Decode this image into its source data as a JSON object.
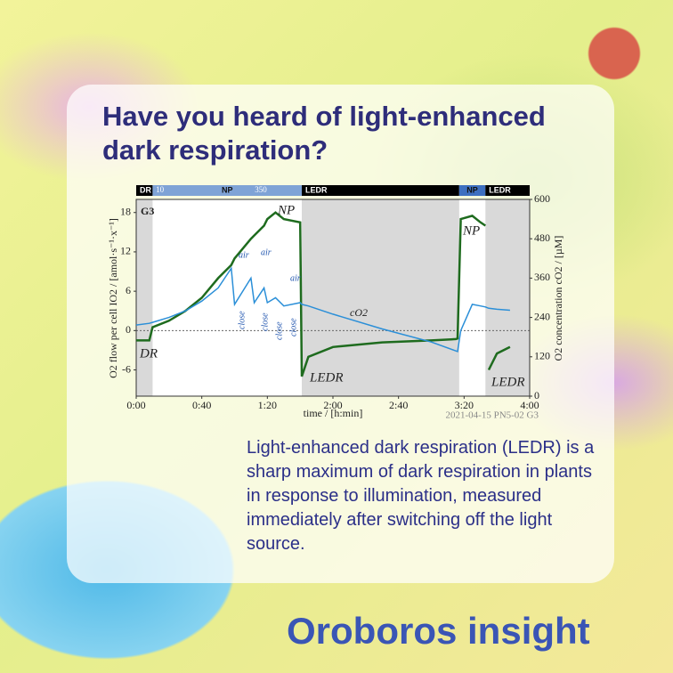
{
  "title": "Have you heard of light-enhanced dark respiration?",
  "body": "Light-enhanced dark respiration (LEDR) is a sharp maximum of dark respiration in plants in response to illumination, measured immediately after switching off the light source.",
  "brand": "Oroboros insight",
  "chart_data": {
    "type": "line",
    "panel_label": "G3",
    "footnote": "2021-04-15 PN5-02 G3",
    "x_label": "time / [h:min]",
    "y_label": "O2 flow per cell IO2 / [amol·s⁻¹·x⁻¹]",
    "y2_label": "O2 concentration cO2 / [µM]",
    "phases": [
      {
        "label": "DR",
        "start": 0,
        "end": 10,
        "color": "#000000"
      },
      {
        "label": "NP",
        "start": 10,
        "end": 101,
        "color": "#7fa3d6"
      },
      {
        "label": "LEDR",
        "start": 101,
        "end": 197,
        "color": "#000000"
      },
      {
        "label": "NP",
        "start": 197,
        "end": 213,
        "color": "#3d6fc0"
      },
      {
        "label": "LEDR",
        "start": 213,
        "end": 240,
        "color": "#000000"
      }
    ],
    "intensity_labels": [
      "10",
      "350"
    ],
    "annotations": [
      "NP",
      "DR",
      "LEDR",
      "NP",
      "LEDR",
      "air",
      "air",
      "air",
      "close",
      "close",
      "close",
      "close"
    ],
    "x": [
      0,
      8,
      10,
      20,
      30,
      40,
      50,
      58,
      60,
      70,
      72,
      78,
      80,
      85,
      90,
      100,
      101,
      105,
      120,
      150,
      180,
      195,
      196,
      198,
      205,
      210,
      213,
      214,
      215,
      220,
      228
    ],
    "series": [
      {
        "color": "#1e6b1e",
        "values": [
          -1.5,
          -1.5,
          0.5,
          1.5,
          3,
          5,
          8,
          10,
          11,
          14,
          14.5,
          16,
          17,
          18,
          17,
          16.5,
          -7,
          -4,
          -2.5,
          -1.8,
          -1.5,
          -1.3,
          -1.2,
          17,
          17.5,
          16.5,
          16,
          null,
          -6,
          -3.5,
          -2.5
        ]
      },
      {
        "name": "cO2",
        "color": "#2b8fd8",
        "axis": "y2",
        "values": [
          217,
          222,
          225,
          240,
          260,
          290,
          330,
          390,
          280,
          360,
          285,
          330,
          285,
          300,
          275,
          285,
          280,
          275,
          250,
          205,
          165,
          138,
          136,
          200,
          280,
          275,
          272,
          270,
          268,
          265,
          262
        ]
      }
    ],
    "xlim": [
      0,
      240
    ],
    "xticks": [
      {
        "value": 0,
        "label": "0:00"
      },
      {
        "value": 40,
        "label": "0:40"
      },
      {
        "value": 80,
        "label": "1:20"
      },
      {
        "value": 120,
        "label": "2:00"
      },
      {
        "value": 160,
        "label": "2:40"
      },
      {
        "value": 200,
        "label": "3:20"
      },
      {
        "value": 240,
        "label": "4:00"
      }
    ],
    "ylim": [
      -10,
      20
    ],
    "yticks": [
      -6,
      0,
      6,
      12,
      18
    ],
    "y2lim": [
      0,
      600
    ],
    "y2ticks": [
      0,
      120,
      240,
      360,
      480,
      600
    ]
  }
}
